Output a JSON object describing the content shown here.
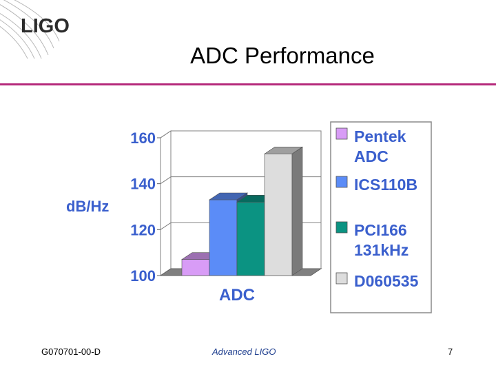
{
  "logo": {
    "text": "LIGO"
  },
  "slide": {
    "title": "ADC Performance"
  },
  "footer": {
    "doc_id": "G070701-00-D",
    "center": "Advanced LIGO",
    "page": "7"
  },
  "colors": {
    "accent_rule": "#b5287a",
    "label_blue": "#3a5fcd"
  },
  "chart_data": {
    "type": "bar",
    "categories": [
      "ADC"
    ],
    "series": [
      {
        "name": "Pentek ADC",
        "values": [
          107
        ],
        "color": "#d89cf6"
      },
      {
        "name": "ICS110B",
        "values": [
          133
        ],
        "color": "#5b8cf7"
      },
      {
        "name": "PCI166 131kHz",
        "values": [
          132
        ],
        "color": "#0b9382"
      },
      {
        "name": "D060535",
        "values": [
          153
        ],
        "color": "#dddddd"
      }
    ],
    "xlabel": "ADC",
    "ylabel": "dB/Hz",
    "yticks": [
      "100",
      "120",
      "140",
      "160"
    ],
    "ylim": [
      100,
      160
    ],
    "grid": true,
    "legend_position": "right",
    "style": "3d"
  }
}
